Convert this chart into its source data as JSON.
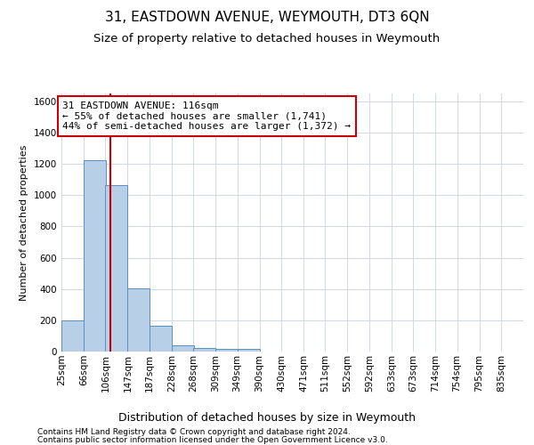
{
  "title": "31, EASTDOWN AVENUE, WEYMOUTH, DT3 6QN",
  "subtitle": "Size of property relative to detached houses in Weymouth",
  "xlabel": "Distribution of detached houses by size in Weymouth",
  "ylabel": "Number of detached properties",
  "footer_line1": "Contains HM Land Registry data © Crown copyright and database right 2024.",
  "footer_line2": "Contains public sector information licensed under the Open Government Licence v3.0.",
  "bin_labels": [
    "25sqm",
    "66sqm",
    "106sqm",
    "147sqm",
    "187sqm",
    "228sqm",
    "268sqm",
    "309sqm",
    "349sqm",
    "390sqm",
    "430sqm",
    "471sqm",
    "511sqm",
    "552sqm",
    "592sqm",
    "633sqm",
    "673sqm",
    "714sqm",
    "754sqm",
    "795sqm",
    "835sqm"
  ],
  "bin_edges": [
    25,
    66,
    106,
    147,
    187,
    228,
    268,
    309,
    349,
    390,
    430,
    471,
    511,
    552,
    592,
    633,
    673,
    714,
    754,
    795,
    835
  ],
  "bar_values": [
    200,
    1225,
    1065,
    405,
    165,
    40,
    20,
    15,
    15,
    0,
    0,
    0,
    0,
    0,
    0,
    0,
    0,
    0,
    0,
    0
  ],
  "bar_color": "#b8cfe8",
  "bar_edgecolor": "#5a8fc0",
  "bar_linewidth": 0.7,
  "property_line_x": 116,
  "property_line_color": "#cc0000",
  "annotation_text": "31 EASTDOWN AVENUE: 116sqm\n← 55% of detached houses are smaller (1,741)\n44% of semi-detached houses are larger (1,372) →",
  "annotation_box_color": "#ffffff",
  "annotation_box_edgecolor": "#cc0000",
  "ylim": [
    0,
    1650
  ],
  "yticks": [
    0,
    200,
    400,
    600,
    800,
    1000,
    1200,
    1400,
    1600
  ],
  "grid_color": "#d0d8e8",
  "background_color": "#ffffff",
  "title_fontsize": 11,
  "subtitle_fontsize": 9.5,
  "ylabel_fontsize": 8,
  "xlabel_fontsize": 9,
  "annotation_fontsize": 8,
  "tick_fontsize": 7.5,
  "footer_fontsize": 6.5
}
